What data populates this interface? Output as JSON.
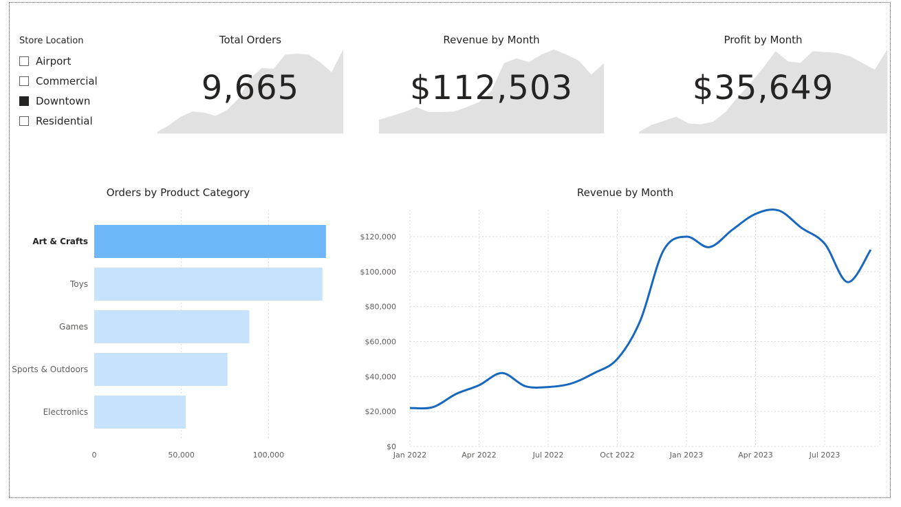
{
  "slicer": {
    "title": "Store Location",
    "items": [
      {
        "label": "Airport",
        "checked": false
      },
      {
        "label": "Commercial",
        "checked": false
      },
      {
        "label": "Downtown",
        "checked": true
      },
      {
        "label": "Residential",
        "checked": false
      }
    ]
  },
  "cards": [
    {
      "title": "Total Orders",
      "value": "9,665"
    },
    {
      "title": "Revenue by Month",
      "value": "$112,503"
    },
    {
      "title": "Profit by Month",
      "value": "$35,649"
    }
  ],
  "colors": {
    "bar_highlight": "#6fb7fb",
    "bar_normal": "#c6e2fd",
    "line": "#1767be",
    "spark": "#e1e1e1",
    "grid": "#d9d9d9"
  },
  "chart_data": [
    {
      "type": "area",
      "id": "spark-orders",
      "values": [
        2,
        10,
        20,
        26,
        25,
        21,
        28,
        42,
        66,
        78,
        77,
        94,
        95,
        94,
        85,
        73,
        100
      ]
    },
    {
      "type": "area",
      "id": "spark-revenue",
      "values": [
        22,
        28,
        34,
        42,
        34,
        34,
        35,
        42,
        50,
        68,
        112,
        120,
        114,
        126,
        134,
        126,
        116,
        94,
        112
      ]
    },
    {
      "type": "area",
      "id": "spark-profit",
      "values": [
        2,
        10,
        15,
        20,
        12,
        11,
        14,
        26,
        44,
        60,
        78,
        98,
        86,
        84,
        98,
        97,
        96,
        92,
        84,
        76,
        100
      ]
    },
    {
      "type": "bar",
      "orientation": "horizontal",
      "title": "Orders by Product Category",
      "categories": [
        "Art & Crafts",
        "Toys",
        "Games",
        "Sports & Outdoors",
        "Electronics"
      ],
      "values": [
        133000,
        131000,
        89000,
        76500,
        52500
      ],
      "highlight": [
        true,
        false,
        false,
        false,
        false
      ],
      "xlim": [
        0,
        140000
      ],
      "xticks": [
        0,
        50000,
        100000
      ],
      "xtick_labels": [
        "0",
        "50,000",
        "100,000"
      ],
      "grid": true
    },
    {
      "type": "line",
      "title": "Revenue by Month",
      "x_labels": [
        "Jan 2022",
        "Apr 2022",
        "Jul 2022",
        "Oct 2022",
        "Jan 2023",
        "Apr 2023",
        "Jul 2023"
      ],
      "x_label_months": [
        0,
        3,
        6,
        9,
        12,
        15,
        18
      ],
      "months": [
        "Jan 2022",
        "Feb 2022",
        "Mar 2022",
        "Apr 2022",
        "May 2022",
        "Jun 2022",
        "Jul 2022",
        "Aug 2022",
        "Sep 2022",
        "Oct 2022",
        "Nov 2022",
        "Dec 2022",
        "Jan 2023",
        "Feb 2023",
        "Mar 2023",
        "Apr 2023",
        "May 2023",
        "Jun 2023",
        "Jul 2023",
        "Aug 2023",
        "Sep 2023"
      ],
      "values": [
        22000,
        22500,
        30000,
        35000,
        42000,
        34500,
        34000,
        36000,
        42000,
        50000,
        72000,
        112000,
        120000,
        114000,
        124000,
        133000,
        135000,
        125000,
        116000,
        94000,
        112500
      ],
      "ylim": [
        0,
        140000
      ],
      "yticks": [
        0,
        20000,
        40000,
        60000,
        80000,
        100000,
        120000
      ],
      "ytick_labels": [
        "$0",
        "$20,000",
        "$40,000",
        "$60,000",
        "$80,000",
        "$100,000",
        "$120,000"
      ],
      "grid": true
    }
  ]
}
